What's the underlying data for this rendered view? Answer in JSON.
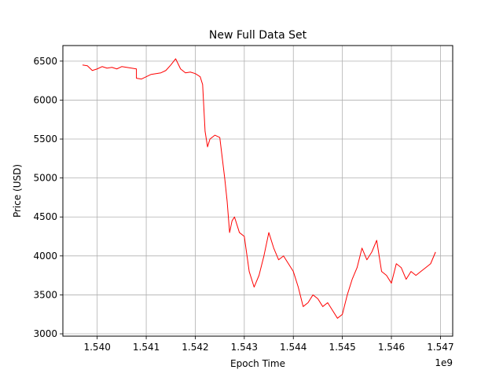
{
  "chart_data": {
    "type": "line",
    "title": "New Full Data Set",
    "xlabel": "Epoch Time",
    "ylabel": "Price (USD)",
    "x_offset_label": "1e9",
    "xlim": [
      1.5393,
      1.54725
    ],
    "ylim": [
      2970,
      6700
    ],
    "xticks": [
      1.54,
      1.541,
      1.542,
      1.543,
      1.544,
      1.545,
      1.546,
      1.547
    ],
    "xtick_labels": [
      "1.540",
      "1.541",
      "1.542",
      "1.543",
      "1.544",
      "1.545",
      "1.546",
      "1.547"
    ],
    "yticks": [
      3000,
      3500,
      4000,
      4500,
      5000,
      5500,
      6000,
      6500
    ],
    "ytick_labels": [
      "3000",
      "3500",
      "4000",
      "4500",
      "5000",
      "5500",
      "6000",
      "6500"
    ],
    "grid": true,
    "legend": "none",
    "series": [
      {
        "color": "#ff0000",
        "x": [
          1.5397,
          1.5398,
          1.5399,
          1.54,
          1.5401,
          1.5402,
          1.5403,
          1.5404,
          1.5405,
          1.5406,
          1.5407,
          1.5408,
          1.5408,
          1.5409,
          1.541,
          1.5411,
          1.5412,
          1.5413,
          1.5414,
          1.5415,
          1.5416,
          1.5417,
          1.5418,
          1.5419,
          1.542,
          1.5421,
          1.54215,
          1.5422,
          1.54225,
          1.5423,
          1.5424,
          1.5425,
          1.5426,
          1.54265,
          1.5427,
          1.54275,
          1.5428,
          1.5429,
          1.543,
          1.5431,
          1.5432,
          1.5433,
          1.5434,
          1.5435,
          1.5436,
          1.5437,
          1.5438,
          1.5439,
          1.544,
          1.5441,
          1.5442,
          1.5443,
          1.5444,
          1.5445,
          1.5446,
          1.5447,
          1.5448,
          1.5449,
          1.545,
          1.5451,
          1.5452,
          1.5453,
          1.5454,
          1.5455,
          1.5456,
          1.5457,
          1.5458,
          1.5459,
          1.546,
          1.5461,
          1.5462,
          1.5463,
          1.5464,
          1.5465,
          1.5466,
          1.5467,
          1.5468,
          1.5469
        ],
        "y": [
          6450,
          6440,
          6380,
          6400,
          6430,
          6410,
          6420,
          6400,
          6430,
          6420,
          6410,
          6400,
          6280,
          6270,
          6300,
          6330,
          6340,
          6350,
          6380,
          6450,
          6530,
          6400,
          6350,
          6360,
          6340,
          6300,
          6200,
          5600,
          5400,
          5500,
          5550,
          5520,
          5000,
          4700,
          4300,
          4450,
          4500,
          4300,
          4250,
          3800,
          3600,
          3750,
          4000,
          4300,
          4100,
          3950,
          4000,
          3900,
          3800,
          3600,
          3350,
          3400,
          3500,
          3450,
          3350,
          3400,
          3300,
          3200,
          3250,
          3500,
          3700,
          3850,
          4100,
          3950,
          4050,
          4200,
          3800,
          3750,
          3650,
          3900,
          3850,
          3700,
          3800,
          3750,
          3800,
          3850,
          3900,
          4050
        ]
      }
    ]
  }
}
